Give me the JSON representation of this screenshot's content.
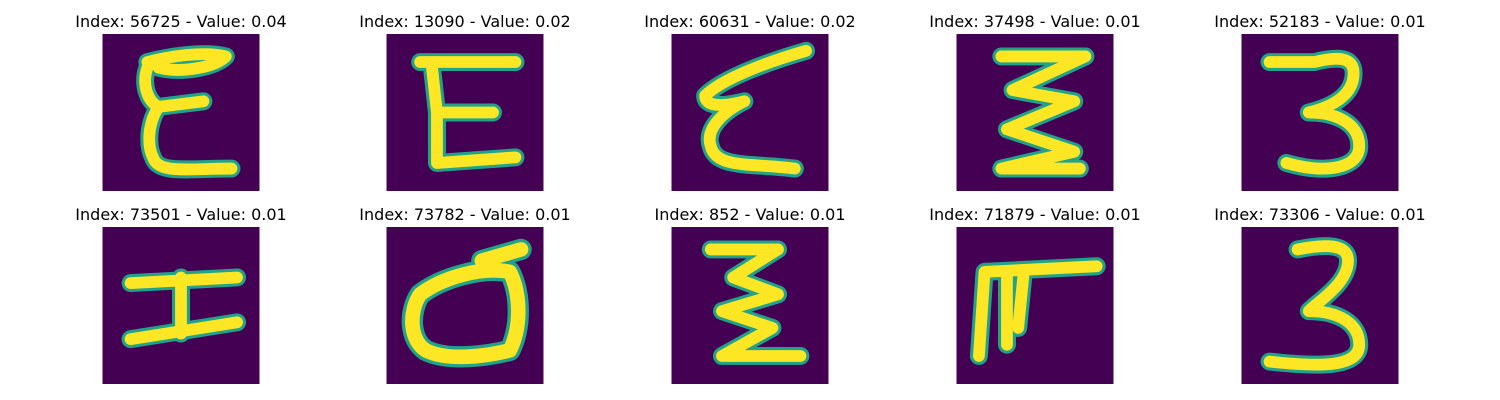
{
  "figure": {
    "background_color": "#ffffff",
    "image_background_color": "#440154",
    "stroke_color_core": "#fde725",
    "stroke_color_edge": "#21a38a",
    "panels": [
      {
        "title": "Index: 56725 - Value: 0.04",
        "glyph": "E-loop"
      },
      {
        "title": "Index: 13090 - Value: 0.02",
        "glyph": "E"
      },
      {
        "title": "Index: 60631 - Value: 0.02",
        "glyph": "E-slant"
      },
      {
        "title": "Index: 37498 - Value: 0.01",
        "glyph": "zigzag"
      },
      {
        "title": "Index: 52183 - Value: 0.01",
        "glyph": "three"
      },
      {
        "title": "Index: 73501 - Value: 0.01",
        "glyph": "H-rotated"
      },
      {
        "title": "Index: 73782 - Value: 0.01",
        "glyph": "d-rotated"
      },
      {
        "title": "Index: 852 - Value: 0.01",
        "glyph": "zigzag-narrow"
      },
      {
        "title": "Index: 71879 - Value: 0.01",
        "glyph": "F-rotated"
      },
      {
        "title": "Index: 73306 - Value: 0.01",
        "glyph": "three-tall"
      }
    ]
  }
}
